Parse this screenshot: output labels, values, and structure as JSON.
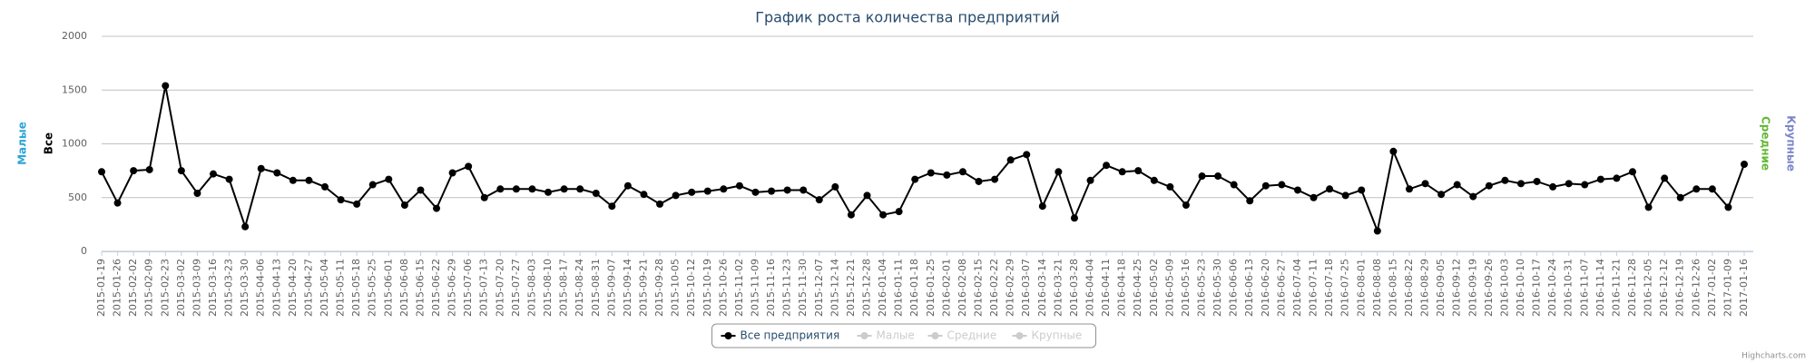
{
  "chart_data": {
    "type": "line",
    "title": "График роста количества предприятий",
    "categories": [
      "2015-01-19",
      "2015-01-26",
      "2015-02-02",
      "2015-02-09",
      "2015-02-23",
      "2015-03-02",
      "2015-03-09",
      "2015-03-16",
      "2015-03-23",
      "2015-03-30",
      "2015-04-06",
      "2015-04-13",
      "2015-04-20",
      "2015-04-27",
      "2015-05-04",
      "2015-05-11",
      "2015-05-18",
      "2015-05-25",
      "2015-06-01",
      "2015-06-08",
      "2015-06-15",
      "2015-06-22",
      "2015-06-29",
      "2015-07-06",
      "2015-07-13",
      "2015-07-20",
      "2015-07-27",
      "2015-08-03",
      "2015-08-10",
      "2015-08-17",
      "2015-08-24",
      "2015-08-31",
      "2015-09-07",
      "2015-09-14",
      "2015-09-21",
      "2015-09-28",
      "2015-10-05",
      "2015-10-12",
      "2015-10-19",
      "2015-10-26",
      "2015-11-02",
      "2015-11-09",
      "2015-11-16",
      "2015-11-23",
      "2015-11-30",
      "2015-12-07",
      "2015-12-14",
      "2015-12-21",
      "2015-12-28",
      "2016-01-04",
      "2016-01-11",
      "2016-01-18",
      "2016-01-25",
      "2016-02-01",
      "2016-02-08",
      "2016-02-15",
      "2016-02-22",
      "2016-02-29",
      "2016-03-07",
      "2016-03-14",
      "2016-03-21",
      "2016-03-28",
      "2016-04-04",
      "2016-04-11",
      "2016-04-18",
      "2016-04-25",
      "2016-05-02",
      "2016-05-09",
      "2016-05-16",
      "2016-05-23",
      "2016-05-30",
      "2016-06-06",
      "2016-06-13",
      "2016-06-20",
      "2016-06-27",
      "2016-07-04",
      "2016-07-11",
      "2016-07-18",
      "2016-07-25",
      "2016-08-01",
      "2016-08-08",
      "2016-08-15",
      "2016-08-22",
      "2016-08-29",
      "2016-09-05",
      "2016-09-12",
      "2016-09-19",
      "2016-09-26",
      "2016-10-03",
      "2016-10-10",
      "2016-10-17",
      "2016-10-24",
      "2016-10-31",
      "2016-11-07",
      "2016-11-14",
      "2016-11-21",
      "2016-11-28",
      "2016-12-05",
      "2016-12-12",
      "2016-12-19",
      "2016-12-26",
      "2017-01-02",
      "2017-01-09",
      "2017-01-16"
    ],
    "series": [
      {
        "name": "Все предприятия",
        "color": "#000000",
        "visible": true,
        "values": [
          740,
          450,
          750,
          760,
          1540,
          750,
          540,
          720,
          670,
          230,
          770,
          730,
          660,
          660,
          600,
          480,
          440,
          620,
          670,
          430,
          570,
          400,
          730,
          790,
          500,
          580,
          580,
          580,
          550,
          580,
          580,
          540,
          420,
          610,
          530,
          440,
          520,
          550,
          560,
          580,
          610,
          550,
          560,
          570,
          570,
          480,
          600,
          340,
          520,
          340,
          370,
          670,
          730,
          710,
          740,
          650,
          670,
          850,
          900,
          420,
          740,
          310,
          660,
          800,
          740,
          750,
          660,
          600,
          430,
          700,
          700,
          620,
          470,
          610,
          620,
          570,
          500,
          580,
          520,
          570,
          190,
          930,
          580,
          630,
          530,
          620,
          510,
          610,
          660,
          630,
          650,
          600,
          630,
          620,
          670,
          680,
          740,
          410,
          680,
          500,
          580,
          580,
          410,
          810
        ]
      },
      {
        "name": "Малые",
        "color": "#2aa5d6",
        "visible": false
      },
      {
        "name": "Средние",
        "color": "#62b834",
        "visible": false
      },
      {
        "name": "Крупные",
        "color": "#7b86c8",
        "visible": false
      }
    ],
    "y_axis_titles": [
      {
        "text": "Малые",
        "color": "#2aa5d6",
        "side": "left"
      },
      {
        "text": "Все",
        "color": "#000000",
        "side": "left"
      },
      {
        "text": "Средние",
        "color": "#62b834",
        "side": "right"
      },
      {
        "text": "Крупные",
        "color": "#7b86c8",
        "side": "right"
      }
    ],
    "ylim": [
      0,
      2000
    ],
    "yticks": [
      0,
      500,
      1000,
      1500,
      2000
    ],
    "grid": true,
    "legend": "bottom",
    "credits": "Highcharts.com"
  }
}
